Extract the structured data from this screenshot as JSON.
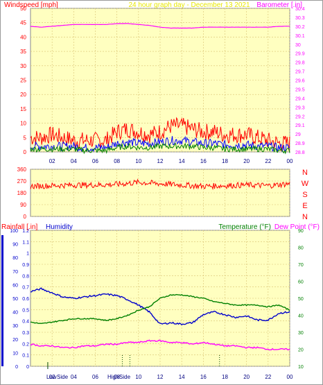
{
  "header": {
    "left_title": "Windspeed [mph]",
    "center_title": "24 hour graph day - December 13 2021",
    "right_title": "Barometer [.in]"
  },
  "lower_header": {
    "rain_label": "Rainfall [.in]",
    "humidity_label": "Humidity",
    "temperature_label": "Temperature (°F)",
    "dewpoint_label": "Dew Point (°F)"
  },
  "direction_letters": [
    "N",
    "W",
    "S",
    "E",
    "N"
  ],
  "time_ticks": [
    "02",
    "04",
    "06",
    "08",
    "10",
    "12",
    "14",
    "16",
    "18",
    "20",
    "22",
    "00"
  ],
  "lower_markers": [
    "Low",
    "Side",
    "High",
    "Side"
  ],
  "colors": {
    "panel_bg": "#ffffc0",
    "wind_gust": "#ff0000",
    "wind_avg": "#0000ff",
    "wind_low": "#008000",
    "barometer": "#ff00ff",
    "direction": "#ff0000",
    "humidity": "#0000cc",
    "temperature": "#008000",
    "dewpoint": "#ff00ff",
    "title_yellow": "#e8e800",
    "grid": "#d8c070"
  },
  "chart_data": [
    {
      "type": "line",
      "panel": "wind-barometer",
      "title": "24 hour graph day - December 13 2021",
      "ylabel": "Windspeed [mph]",
      "ylabel_right": "Barometer [.in]",
      "ylim": [
        0,
        50
      ],
      "ylim_right": [
        28.8,
        30.4
      ],
      "yticks": [
        "0",
        "5",
        "10",
        "15",
        "20",
        "25",
        "30",
        "35",
        "40",
        "45",
        "50"
      ],
      "yticks_right": [
        "28.8",
        "28.9",
        "29",
        "29.1",
        "29.2",
        "29.3",
        "29.4",
        "29.5",
        "29.6",
        "29.7",
        "29.8",
        "29.9",
        "30",
        "30.1",
        "30.2",
        "30.3",
        "30.4"
      ],
      "xlim": [
        0,
        24
      ],
      "x": [
        0,
        1,
        2,
        3,
        4,
        5,
        6,
        7,
        8,
        9,
        10,
        11,
        12,
        13,
        14,
        15,
        16,
        17,
        18,
        19,
        20,
        21,
        22,
        23,
        24
      ],
      "series": [
        {
          "values": [
            5,
            5,
            6,
            5,
            4,
            4,
            4,
            4,
            7,
            8,
            7,
            6,
            7,
            9,
            9,
            8,
            7,
            7,
            6,
            6,
            6,
            5,
            4,
            3,
            3
          ]
        },
        {
          "values": [
            2,
            2,
            2,
            2,
            2,
            1.5,
            1.5,
            1.5,
            3,
            3.5,
            3,
            3,
            3.5,
            4,
            4,
            3.5,
            3,
            3,
            2.5,
            2.5,
            2.5,
            2,
            2,
            1.5,
            1.5
          ]
        },
        {
          "values": [
            1,
            1,
            1,
            1,
            1,
            0.5,
            0.5,
            0.5,
            1.5,
            2,
            1.5,
            1.5,
            2,
            2,
            2,
            2,
            1.5,
            1.5,
            1,
            1,
            1,
            1,
            1,
            0.5,
            0.5
          ]
        },
        {
          "axis": "right",
          "values": [
            30.2,
            30.19,
            30.2,
            30.21,
            30.22,
            30.22,
            30.22,
            30.22,
            30.23,
            30.23,
            30.22,
            30.21,
            30.19,
            30.18,
            30.18,
            30.18,
            30.19,
            30.19,
            30.19,
            30.19,
            30.19,
            30.19,
            30.19,
            30.2,
            30.2
          ]
        }
      ]
    },
    {
      "type": "line",
      "panel": "wind-direction",
      "ylim": [
        0,
        360
      ],
      "yticks": [
        "0",
        "90",
        "180",
        "270",
        "360"
      ],
      "xlim": [
        0,
        24
      ],
      "x": [
        0,
        2,
        4,
        6,
        8,
        10,
        12,
        14,
        16,
        18,
        20,
        22,
        24
      ],
      "series": [
        {
          "values": [
            230,
            235,
            240,
            240,
            245,
            260,
            250,
            240,
            230,
            235,
            240,
            235,
            250
          ]
        }
      ]
    },
    {
      "type": "line",
      "panel": "rain-humidity-temperature",
      "ylabel": "Rainfall [.in]",
      "ylim": [
        0,
        1.2
      ],
      "yticks": [
        "0",
        "0.1",
        "0.2",
        "0.3",
        "0.4",
        "0.5",
        "0.6",
        "0.7",
        "0.8",
        "0.9",
        "1",
        "1.1",
        "1.2"
      ],
      "humidity_ylim": [
        0,
        100
      ],
      "humidity_yticks": [
        "0",
        "10",
        "20",
        "30",
        "40",
        "50",
        "60",
        "70",
        "80",
        "90",
        "100"
      ],
      "temperature_ylim": [
        10,
        90
      ],
      "temperature_yticks": [
        "10",
        "20",
        "30",
        "40",
        "50",
        "60",
        "70",
        "80",
        "90"
      ],
      "xlim": [
        0,
        24
      ],
      "x": [
        0,
        1,
        2,
        3,
        4,
        5,
        6,
        7,
        8,
        9,
        10,
        11,
        12,
        13,
        14,
        15,
        16,
        17,
        18,
        19,
        20,
        21,
        22,
        23,
        24
      ],
      "series": [
        {
          "name": "Humidity",
          "axis": "humidity",
          "values": [
            55,
            57,
            54,
            51,
            50,
            51,
            52,
            53,
            52,
            49,
            45,
            40,
            31,
            32,
            31,
            32,
            38,
            40,
            38,
            36,
            37,
            34,
            34,
            39,
            40
          ]
        },
        {
          "name": "Temperature (°F)",
          "axis": "temperature",
          "values": [
            36,
            35,
            36,
            37,
            38,
            38,
            38,
            37,
            38,
            40,
            43,
            45,
            50,
            52,
            52,
            51,
            50,
            48,
            47,
            46,
            46,
            46,
            45,
            46,
            43
          ]
        },
        {
          "name": "Dew Point (°F)",
          "axis": "temperature",
          "values": [
            23,
            22,
            22,
            21,
            21,
            22,
            22,
            23,
            23,
            24,
            24,
            25,
            25,
            24,
            24,
            23,
            24,
            23,
            22,
            22,
            21,
            21,
            20,
            20,
            20
          ]
        }
      ]
    }
  ]
}
